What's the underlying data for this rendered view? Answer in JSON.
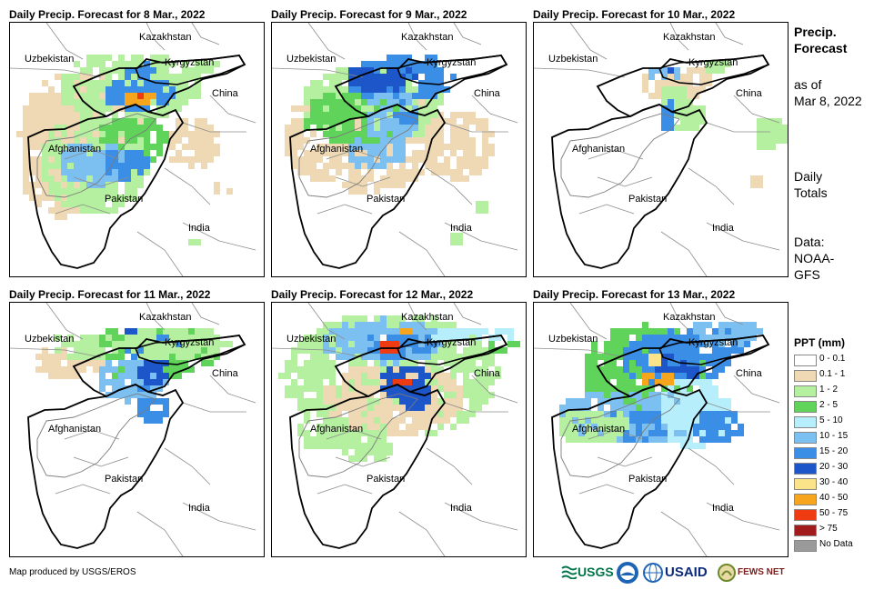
{
  "panels": [
    {
      "title": "Daily Precip. Forecast for 8 Mar., 2022"
    },
    {
      "title": "Daily Precip. Forecast for 9 Mar., 2022"
    },
    {
      "title": "Daily Precip. Forecast for 10 Mar., 2022"
    },
    {
      "title": "Daily Precip. Forecast for 11 Mar., 2022"
    },
    {
      "title": "Daily Precip. Forecast for 12 Mar., 2022"
    },
    {
      "title": "Daily Precip. Forecast for 13 Mar., 2022"
    }
  ],
  "country_labels": {
    "kazakhstan": "Kazakhstan",
    "uzbekistan": "Uzbekistan",
    "kyrgyzstan": "Kyrgyzstan",
    "china": "China",
    "afghanistan": "Afghanistan",
    "pakistan": "Pakistan",
    "india": "India"
  },
  "side": {
    "title_line1": "Precip.",
    "title_line2": "Forecast",
    "asof_line1": "as of",
    "asof_line2": "Mar 8, 2022",
    "daily_line1": "Daily",
    "daily_line2": "Totals",
    "data_line1": "Data:",
    "data_line2": "NOAA-",
    "data_line3": "GFS"
  },
  "legend": {
    "title": "PPT (mm)",
    "items": [
      {
        "label": "0 - 0.1",
        "color": "#ffffff"
      },
      {
        "label": "0.1 - 1",
        "color": "#efd9b4"
      },
      {
        "label": "1 - 2",
        "color": "#b5f0a0"
      },
      {
        "label": "2 - 5",
        "color": "#5fd35a"
      },
      {
        "label": "5 - 10",
        "color": "#b6eefb"
      },
      {
        "label": "10 - 15",
        "color": "#7cc0f2"
      },
      {
        "label": "15 - 20",
        "color": "#3b8ee6"
      },
      {
        "label": "20 - 30",
        "color": "#1c56c8"
      },
      {
        "label": "30 - 40",
        "color": "#fbe38a"
      },
      {
        "label": "40 - 50",
        "color": "#f7a51c"
      },
      {
        "label": "50 - 75",
        "color": "#ef3b12"
      },
      {
        "label": "> 75",
        "color": "#a11d1d"
      },
      {
        "label": "No Data",
        "color": "#9a9a9a"
      }
    ]
  },
  "credit": "Map produced by USGS/EROS",
  "logos": {
    "usgs": "USGS",
    "usaid": "USAID",
    "fewsnet": "FEWS NET"
  }
}
